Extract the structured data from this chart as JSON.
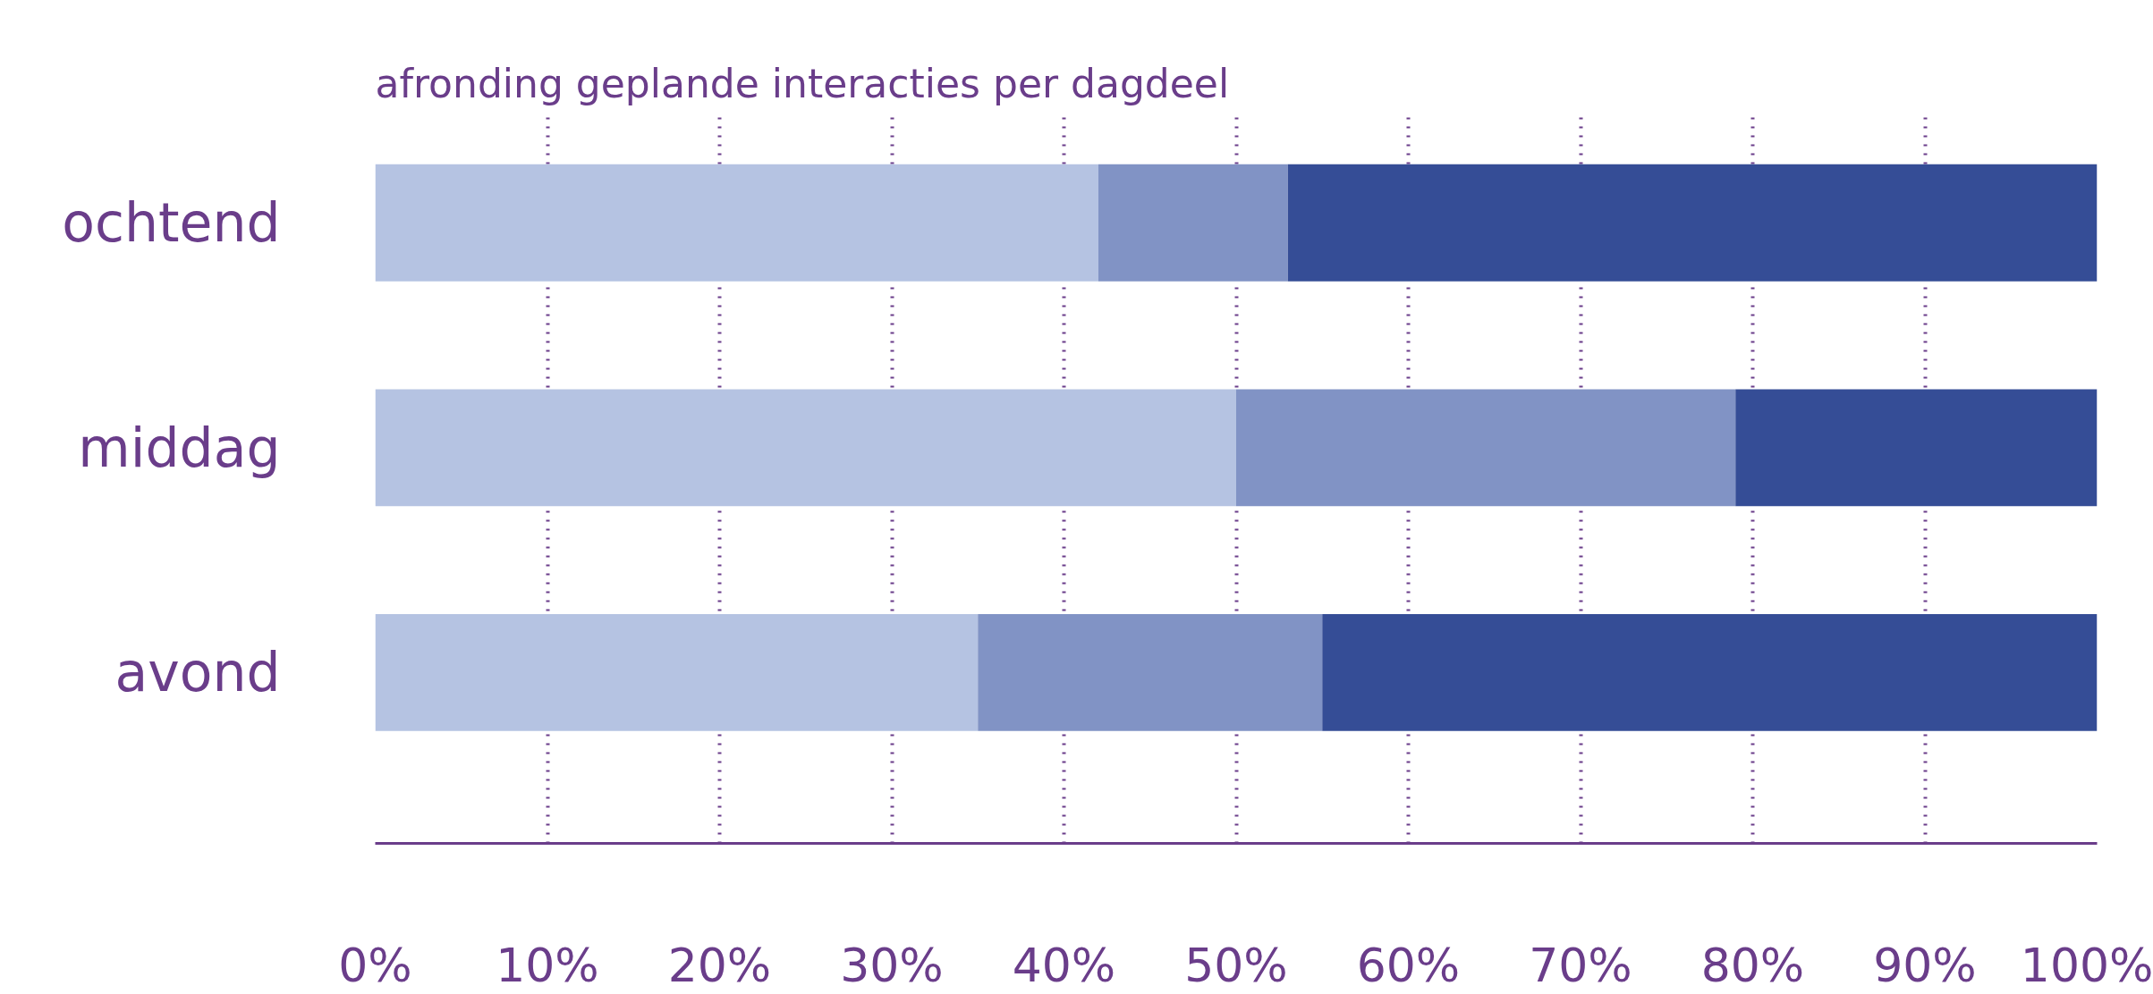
{
  "chart_data": {
    "type": "bar",
    "orientation": "horizontal",
    "stacked": true,
    "title": "afronding geplande interacties per dagdeel",
    "categories": [
      "ochtend",
      "middag",
      "avond"
    ],
    "series": [
      {
        "color": "#b5c3e2",
        "values": [
          42,
          50,
          35
        ]
      },
      {
        "color": "#8193c5",
        "values": [
          11,
          29,
          20
        ]
      },
      {
        "color": "#354d96",
        "values": [
          47,
          21,
          45
        ]
      }
    ],
    "xlim": [
      0,
      100
    ],
    "xticks": [
      {
        "value": 0,
        "label": "0%"
      },
      {
        "value": 10,
        "label": "10%"
      },
      {
        "value": 20,
        "label": "20%"
      },
      {
        "value": 30,
        "label": "30%"
      },
      {
        "value": 40,
        "label": "40%"
      },
      {
        "value": 50,
        "label": "50%"
      },
      {
        "value": 60,
        "label": "60%"
      },
      {
        "value": 70,
        "label": "70%"
      },
      {
        "value": 80,
        "label": "80%"
      },
      {
        "value": 90,
        "label": "90%"
      },
      {
        "value": 100,
        "label": "100%"
      }
    ],
    "grid": "x"
  }
}
